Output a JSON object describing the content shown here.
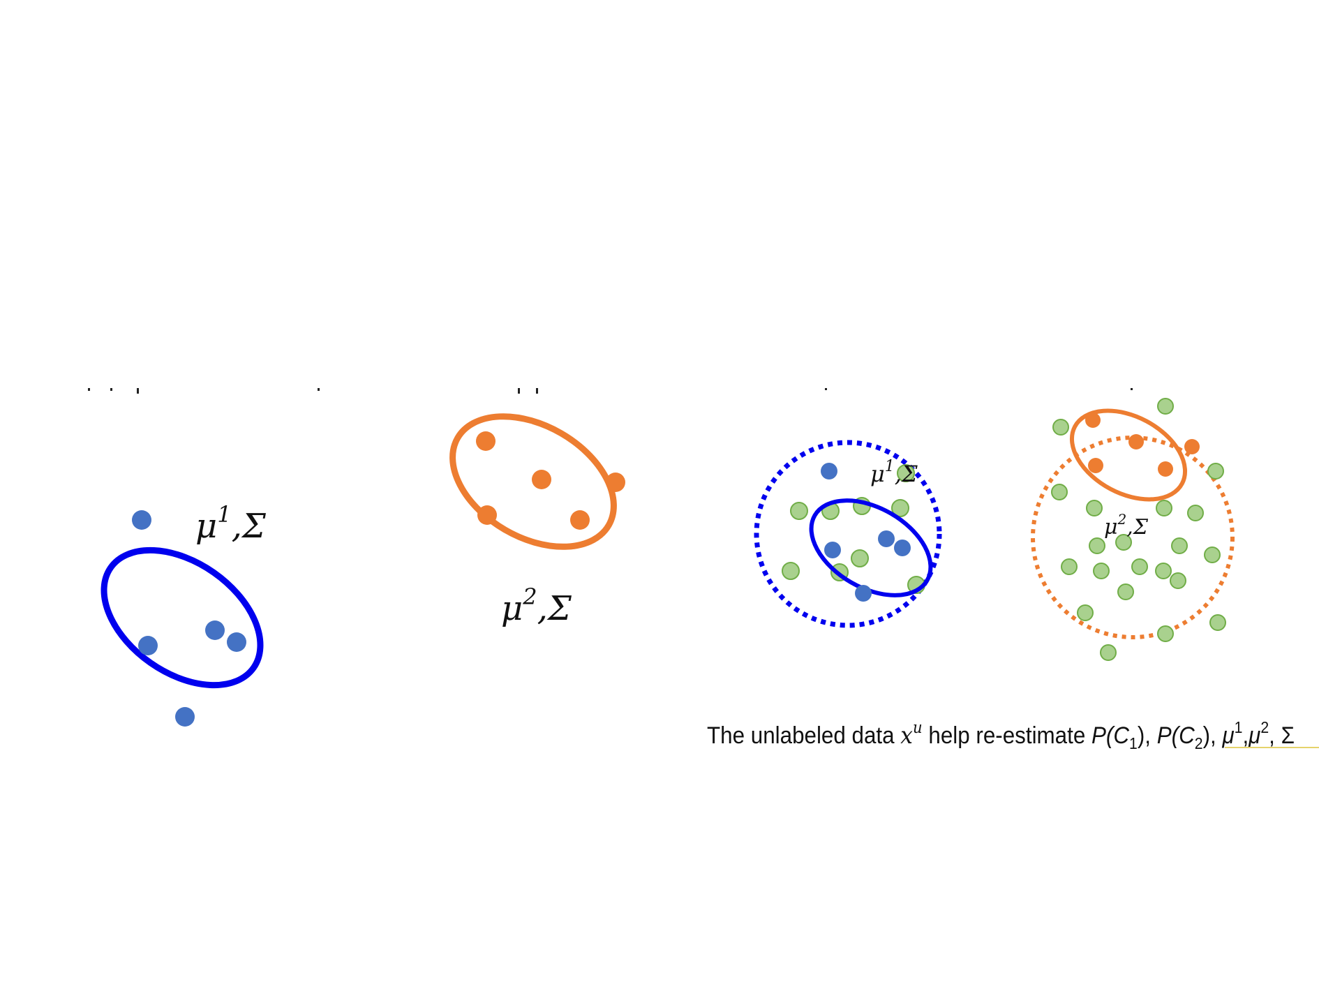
{
  "colors": {
    "labeled_class1": "#4472c4",
    "labeled_class2": "#ed7d31",
    "unlabeled": "#a9d18e",
    "unlabeled_stroke": "#70ad47",
    "ellipse_class1": "#0000ee",
    "ellipse_class2": "#ed7d31",
    "text": "#111111",
    "underline": "#e6d36a"
  },
  "labels": {
    "class1_params": {
      "mu": "μ",
      "sup": "1",
      "rest": ",Σ"
    },
    "class2_params": {
      "mu": "μ",
      "sup": "2",
      "rest": ",Σ"
    },
    "class1_params_updated": {
      "mu": "μ",
      "sup": "1",
      "rest": ",Σ"
    },
    "class2_params_updated": {
      "mu": "μ",
      "sup": "2",
      "rest": ",Σ"
    }
  },
  "caption": {
    "prefix": "The unlabeled data ",
    "xu_base": "x",
    "xu_sup": "u",
    "middle": " help re-estimate ",
    "p1_a": "P(C",
    "p1_sub": "1",
    "p1_b": "), ",
    "p2_a": "P(C",
    "p2_sub": "2",
    "p2_b": "), ",
    "mu1_base": "μ",
    "mu1_sup": "1",
    "comma": ",",
    "mu2_base": "μ",
    "mu2_sup": "2",
    "sigma": ", Σ"
  }
}
